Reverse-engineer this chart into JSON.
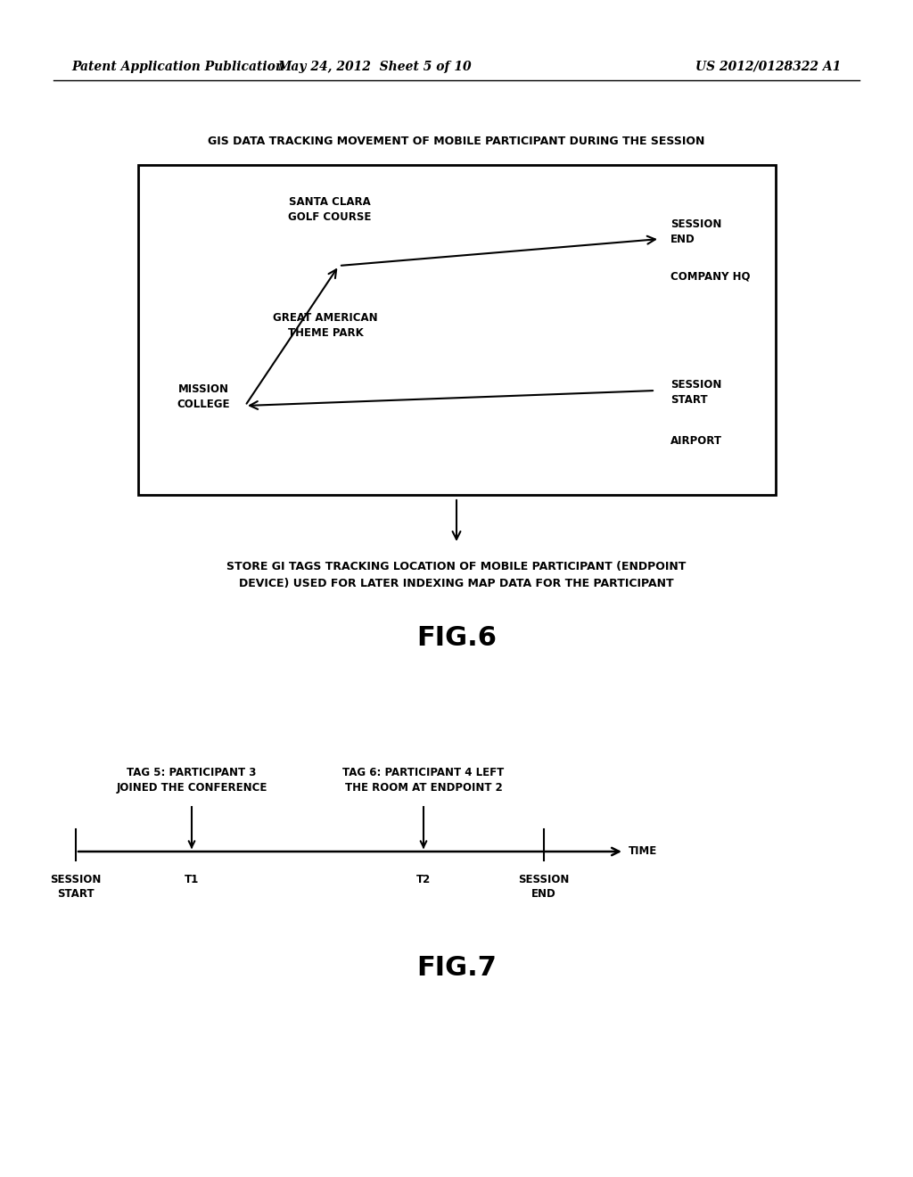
{
  "header_left": "Patent Application Publication",
  "header_mid": "May 24, 2012  Sheet 5 of 10",
  "header_right": "US 2012/0128322 A1",
  "fig6_title": "GIS DATA TRACKING MOVEMENT OF MOBILE PARTICIPANT DURING THE SESSION",
  "fig6_label": "FIG.6",
  "fig6_store_text": "STORE GI TAGS TRACKING LOCATION OF MOBILE PARTICIPANT (ENDPOINT\nDEVICE) USED FOR LATER INDEXING MAP DATA FOR THE PARTICIPANT",
  "fig7_label": "FIG.7",
  "tag5_label": "TAG 5: PARTICIPANT 3\nJOINED THE CONFERENCE",
  "tag6_label": "TAG 6: PARTICIPANT 4 LEFT\nTHE ROOM AT ENDPOINT 2",
  "background_color": "#ffffff",
  "text_color": "#000000"
}
